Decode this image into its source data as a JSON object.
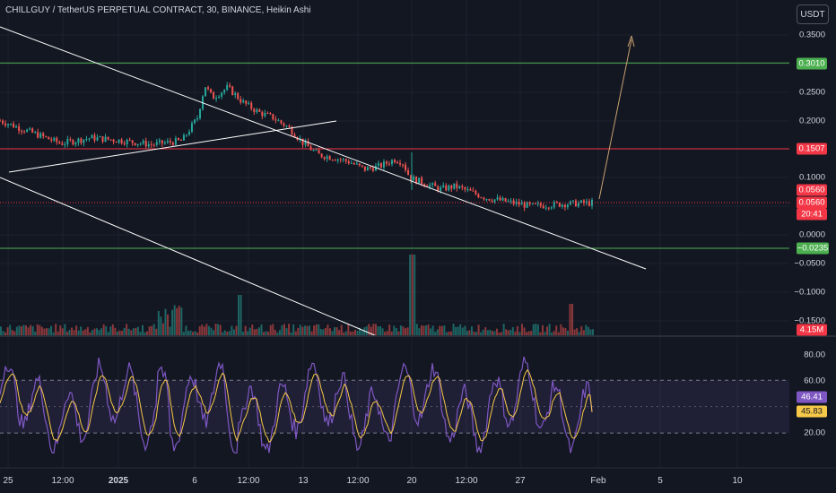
{
  "header": {
    "title": "CHILLGUY / TetherUS PERPETUAL CONTRACT, 30, BINANCE, Heikin Ashi",
    "currency": "USDT"
  },
  "colors": {
    "background": "#131722",
    "bull": "#26a69a",
    "bear": "#ef5350",
    "resistance_line": "#4caf50",
    "support_line": "#f23645",
    "trendline": "#ffffff",
    "projection_arrow": "#c8a070",
    "rsi_line": "#7e57c2",
    "rsi_ma": "#f7c948"
  },
  "price_axis": {
    "ticks": [
      "0.3500",
      "0.2500",
      "0.2000",
      "0.1000",
      "0.0000",
      "−0.0500",
      "−0.1000",
      "−0.1500"
    ]
  },
  "badges": {
    "resistance_high": "0.3010",
    "resistance_mid": "0.1507",
    "last_price": "0.0560",
    "last_price_2": "0.0560",
    "countdown": "20:41",
    "support_low": "−0.0235",
    "volume": "4.15M",
    "rsi_value": "46.41",
    "rsi_ma_value": "45.83"
  },
  "rsi_axis": {
    "ticks": [
      "80.00",
      "60.00",
      "20.00"
    ]
  },
  "time_axis": {
    "ticks": [
      "25",
      "12:00",
      "2025",
      "6",
      "12:00",
      "13",
      "12:00",
      "20",
      "12:00",
      "27",
      "Feb",
      "5",
      "10"
    ]
  },
  "chart_data": {
    "type": "line",
    "price_scale": {
      "ylim": [
        -0.155,
        0.375
      ]
    },
    "price_series": {
      "x": [
        0,
        4,
        8,
        12,
        16,
        20,
        24,
        26,
        27,
        28,
        30,
        32,
        34,
        36,
        38,
        40,
        42,
        44,
        46,
        48,
        50,
        52,
        53,
        54,
        56,
        58,
        60,
        62,
        64,
        66,
        70,
        74,
        78
      ],
      "y": [
        0.2,
        0.18,
        0.16,
        0.17,
        0.165,
        0.158,
        0.165,
        0.205,
        0.262,
        0.24,
        0.258,
        0.232,
        0.215,
        0.205,
        0.188,
        0.16,
        0.14,
        0.135,
        0.128,
        0.115,
        0.12,
        0.132,
        0.128,
        0.1,
        0.09,
        0.08,
        0.085,
        0.075,
        0.065,
        0.06,
        0.05,
        0.054,
        0.056
      ]
    },
    "levels": {
      "resistance_high": 0.301,
      "resistance_mid": 0.1507,
      "last_price": 0.056,
      "support_low": -0.0235
    },
    "rsi": {
      "ylim": [
        5,
        100
      ],
      "band": [
        30,
        70
      ],
      "last_value": 46.41,
      "last_ma": 45.83
    }
  }
}
